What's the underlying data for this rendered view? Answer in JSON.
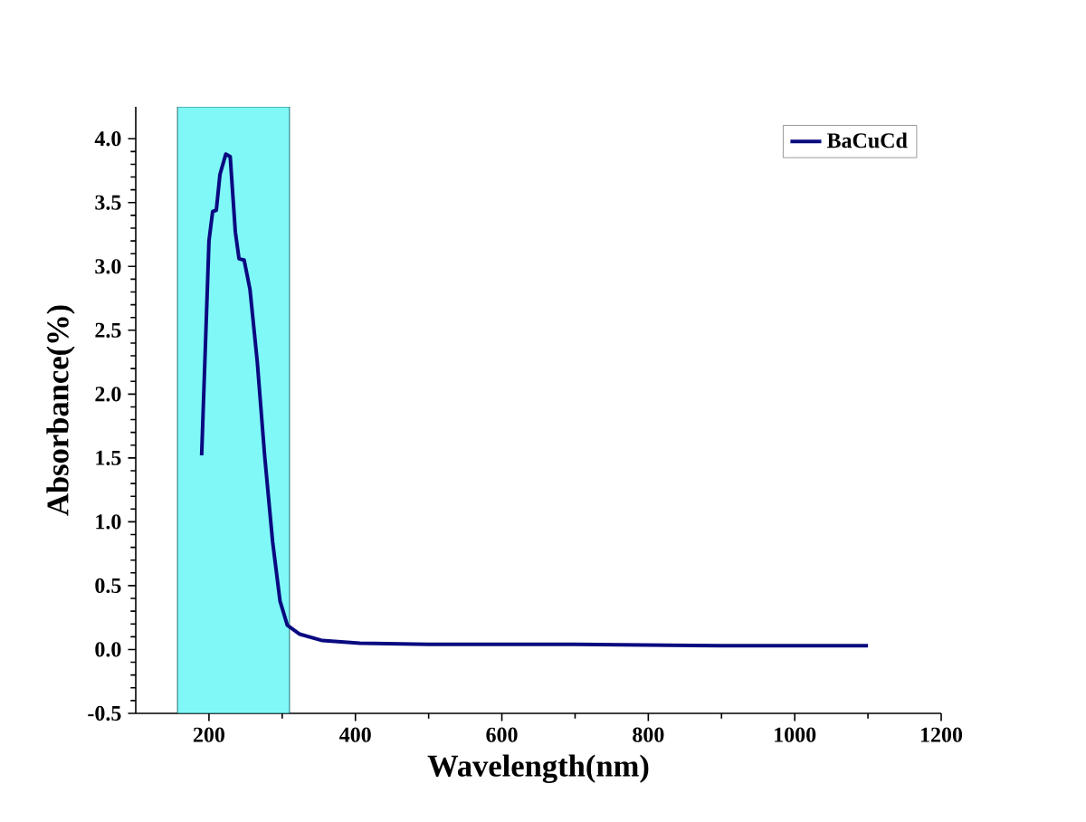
{
  "chart_data": {
    "type": "line",
    "xlabel": "Wavelength(nm)",
    "ylabel": "Absorbance(%)",
    "xlim": [
      100,
      1200
    ],
    "xticks": [
      200,
      400,
      600,
      800,
      1000,
      1200
    ],
    "ylim": [
      -0.5,
      4.25
    ],
    "yticks": [
      {
        "value": -0.5,
        "label": "-0.5"
      },
      {
        "value": 0,
        "label": "0.0"
      },
      {
        "value": 0.5,
        "label": "0.5"
      },
      {
        "value": 1,
        "label": "1.0"
      },
      {
        "value": 1.5,
        "label": "1.5"
      },
      {
        "value": 2,
        "label": "2.0"
      },
      {
        "value": 2.5,
        "label": "2.5"
      },
      {
        "value": 3,
        "label": "3.0"
      },
      {
        "value": 3.5,
        "label": "3.5"
      },
      {
        "value": 4,
        "label": "4.0"
      }
    ],
    "bands": [
      {
        "axis": "x",
        "from": 157,
        "to": 310,
        "color": "#80f8f8"
      }
    ],
    "legend": "top right",
    "series": [
      {
        "name": "BaCuCd",
        "color": "#0a0a80",
        "x": [
          190,
          200,
          205,
          210,
          215,
          223,
          229,
          236,
          241,
          248,
          256,
          266,
          276,
          287,
          297,
          307,
          324,
          355,
          406,
          500,
          700,
          900,
          1100
        ],
        "values": [
          1.52,
          3.2,
          3.43,
          3.44,
          3.72,
          3.88,
          3.86,
          3.27,
          3.06,
          3.05,
          2.82,
          2.25,
          1.52,
          0.84,
          0.38,
          0.19,
          0.12,
          0.07,
          0.05,
          0.04,
          0.04,
          0.03,
          0.03
        ]
      }
    ]
  }
}
